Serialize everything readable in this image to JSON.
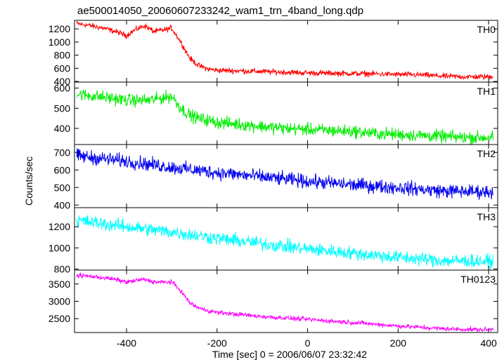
{
  "chart_data": {
    "type": "line",
    "title": "ae500014050_20060607233242_wam1_trn_4band_long.qdp",
    "xlabel": "Time [sec] 0 = 2006/06/07 23:32:42",
    "ylabel": "Counts/sec",
    "xlim": [
      -515,
      420
    ],
    "xticks": [
      -400,
      -200,
      0,
      200,
      400
    ],
    "panels": [
      {
        "name": "TH0",
        "color": "#ff0000",
        "ylim": [
          390,
          1330
        ],
        "yticks": [
          400,
          600,
          800,
          1000,
          1200
        ],
        "noise": 30,
        "x": [
          -510,
          -480,
          -450,
          -420,
          -400,
          -380,
          -360,
          -340,
          -320,
          -300,
          -280,
          -260,
          -240,
          -220,
          -200,
          -150,
          -100,
          -50,
          0,
          50,
          100,
          150,
          200,
          250,
          300,
          350,
          400,
          410
        ],
        "y": [
          1280,
          1250,
          1210,
          1150,
          1100,
          1190,
          1250,
          1160,
          1180,
          1210,
          1000,
          750,
          640,
          590,
          570,
          560,
          550,
          540,
          530,
          525,
          520,
          515,
          505,
          500,
          480,
          470,
          470,
          480
        ]
      },
      {
        "name": "TH1",
        "color": "#00ee00",
        "ylim": [
          320,
          630
        ],
        "yticks": [
          400,
          500,
          600
        ],
        "noise": 22,
        "x": [
          -510,
          -450,
          -400,
          -350,
          -300,
          -280,
          -260,
          -240,
          -200,
          -150,
          -100,
          -50,
          0,
          50,
          100,
          150,
          200,
          250,
          300,
          350,
          400,
          410
        ],
        "y": [
          570,
          555,
          540,
          540,
          560,
          500,
          465,
          450,
          430,
          420,
          410,
          400,
          395,
          390,
          385,
          375,
          370,
          365,
          360,
          355,
          355,
          360
        ]
      },
      {
        "name": "TH2",
        "color": "#0000ee",
        "ylim": [
          385,
          745
        ],
        "yticks": [
          400,
          500,
          600,
          700
        ],
        "noise": 28,
        "x": [
          -510,
          -400,
          -300,
          -200,
          -100,
          0,
          100,
          200,
          300,
          410
        ],
        "y": [
          680,
          650,
          615,
          585,
          560,
          535,
          515,
          500,
          480,
          475
        ]
      },
      {
        "name": "TH3",
        "color": "#00ffff",
        "ylim": [
          790,
          1380
        ],
        "yticks": [
          800,
          1000,
          1200
        ],
        "noise": 45,
        "x": [
          -510,
          -400,
          -300,
          -200,
          -100,
          0,
          100,
          200,
          300,
          410
        ],
        "y": [
          1260,
          1200,
          1150,
          1090,
          1040,
          990,
          950,
          910,
          880,
          870
        ]
      },
      {
        "name": "TH0123",
        "color": "#ff00ff",
        "ylim": [
          2100,
          3900
        ],
        "yticks": [
          2500,
          3000,
          3500
        ],
        "noise": 45,
        "x": [
          -510,
          -480,
          -450,
          -420,
          -400,
          -380,
          -360,
          -340,
          -320,
          -300,
          -280,
          -260,
          -240,
          -220,
          -200,
          -150,
          -100,
          -50,
          0,
          50,
          100,
          150,
          200,
          250,
          300,
          350,
          400,
          410
        ],
        "y": [
          3750,
          3720,
          3680,
          3620,
          3550,
          3600,
          3630,
          3560,
          3550,
          3560,
          3300,
          2950,
          2800,
          2730,
          2680,
          2620,
          2560,
          2520,
          2480,
          2430,
          2390,
          2340,
          2290,
          2250,
          2210,
          2190,
          2180,
          2200
        ]
      }
    ]
  }
}
